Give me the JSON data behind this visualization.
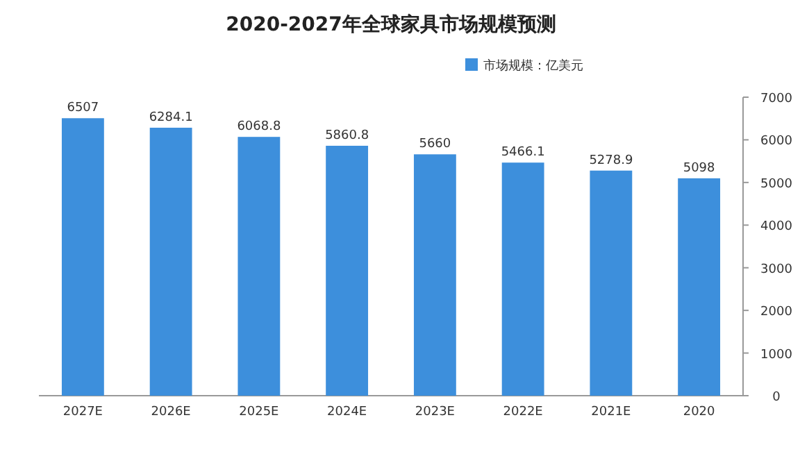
{
  "chart_data": {
    "type": "bar",
    "title": "2020-2027年全球家具市场规模预测",
    "categories": [
      "2027E",
      "2026E",
      "2025E",
      "2024E",
      "2023E",
      "2022E",
      "2021E",
      "2020"
    ],
    "series": [
      {
        "name": "市场规模：亿美元",
        "color": "#3d8fdc",
        "values": [
          6507,
          6284.1,
          6068.8,
          5860.8,
          5660,
          5466.1,
          5278.9,
          5098
        ]
      }
    ],
    "ylim": [
      0,
      7000
    ],
    "yticks": [
      0,
      1000,
      2000,
      3000,
      4000,
      5000,
      6000,
      7000
    ],
    "data_labels": true,
    "legend": "top right"
  }
}
